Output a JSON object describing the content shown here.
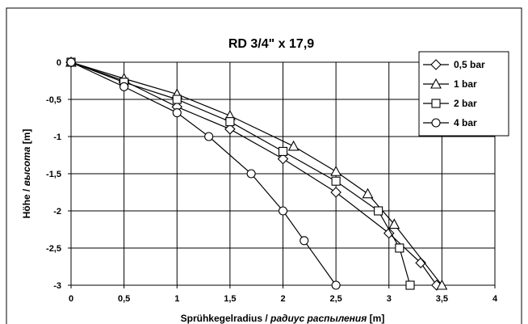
{
  "chart_data": {
    "type": "line",
    "title": "RD 3/4\" x 17,9",
    "xlabel": "Sprühkegelradius  / радиус распыления [m]",
    "xlabel_main": "Sprühkegelradius  / ",
    "xlabel_italic": "радиус распыления",
    "xlabel_unit": " [m]",
    "ylabel": "Höhe / высота  [m]",
    "ylabel_main": "Höhe / ",
    "ylabel_italic": "высота",
    "ylabel_unit": "  [m]",
    "xlim": [
      0,
      4
    ],
    "ylim": [
      -3,
      0
    ],
    "xticks": [
      0,
      0.5,
      1,
      1.5,
      2,
      2.5,
      3,
      3.5,
      4
    ],
    "xtick_labels": [
      "0",
      "0,5",
      "1",
      "1,5",
      "2",
      "2,5",
      "3",
      "3,5",
      "4"
    ],
    "yticks": [
      0,
      -0.5,
      -1,
      -1.5,
      -2,
      -2.5,
      -3
    ],
    "ytick_labels": [
      "0",
      "-0,5",
      "-1",
      "-1,5",
      "-2",
      "-2,5",
      "-3"
    ],
    "grid": true,
    "legend_position": "top-right",
    "series": [
      {
        "name": "0,5 bar",
        "marker": "diamond",
        "x": [
          0,
          0.5,
          1,
          1.5,
          2,
          2.5,
          3,
          3.3,
          3.45
        ],
        "y": [
          0,
          -0.25,
          -0.6,
          -0.9,
          -1.3,
          -1.75,
          -2.3,
          -2.7,
          -3
        ]
      },
      {
        "name": "1 bar",
        "marker": "triangle",
        "x": [
          0,
          0.5,
          1,
          1.5,
          2.1,
          2.5,
          2.8,
          3.05,
          3.5
        ],
        "y": [
          0,
          -0.22,
          -0.43,
          -0.72,
          -1.13,
          -1.47,
          -1.77,
          -2.18,
          -3
        ]
      },
      {
        "name": "2 bar",
        "marker": "square",
        "x": [
          0,
          0.5,
          1,
          1.5,
          2,
          2.5,
          2.9,
          3.1,
          3.2
        ],
        "y": [
          0,
          -0.27,
          -0.5,
          -0.8,
          -1.2,
          -1.6,
          -2,
          -2.5,
          -3
        ]
      },
      {
        "name": "4 bar",
        "marker": "circle",
        "x": [
          0,
          0.5,
          1,
          1.3,
          1.7,
          2,
          2.2,
          2.5
        ],
        "y": [
          0,
          -0.33,
          -0.68,
          -1,
          -1.5,
          -2,
          -2.4,
          -3
        ]
      }
    ]
  }
}
